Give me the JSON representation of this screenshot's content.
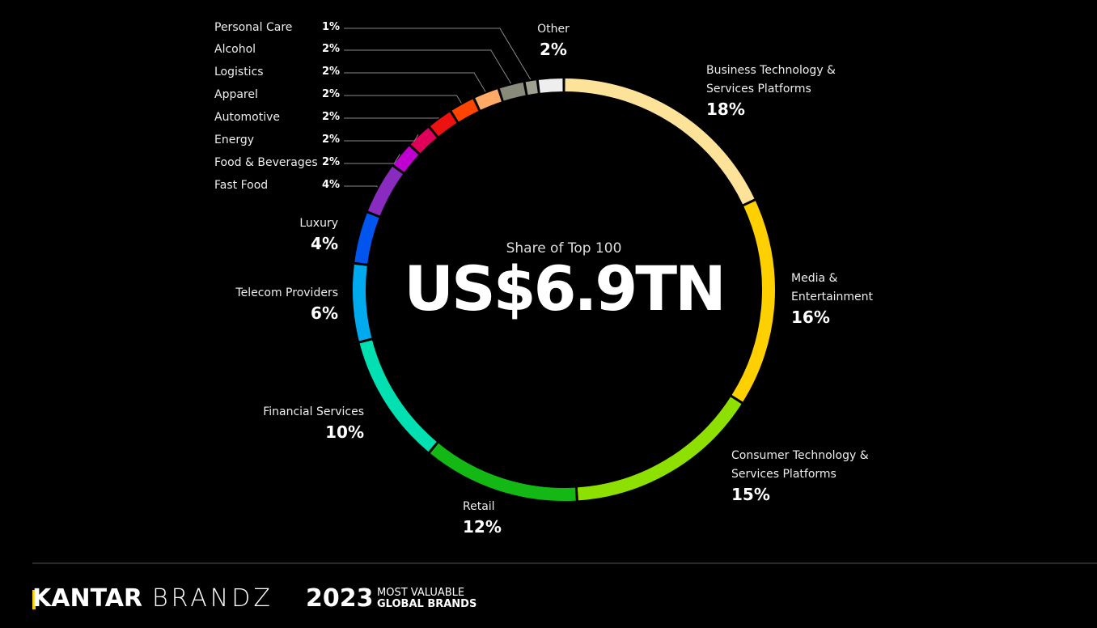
{
  "chart_data": {
    "type": "pie",
    "center_caption": "Share of Top 100",
    "center_value": "US$6.9TN",
    "categories": [
      "Business Technology & Services Platforms",
      "Media & Entertainment",
      "Consumer Technology & Services Platforms",
      "Retail",
      "Financial Services",
      "Telecom Providers",
      "Luxury",
      "Fast Food",
      "Food & Beverages",
      "Energy",
      "Automotive",
      "Apparel",
      "Logistics",
      "Alcohol",
      "Personal Care",
      "Other"
    ],
    "values": [
      18,
      16,
      15,
      12,
      10,
      6,
      4,
      4,
      2,
      2,
      2,
      2,
      2,
      2,
      1,
      2
    ],
    "value_labels": [
      "18%",
      "16%",
      "15%",
      "12%",
      "10%",
      "6%",
      "4%",
      "4%",
      "2%",
      "2%",
      "2%",
      "2%",
      "2%",
      "2%",
      "1%",
      "2%"
    ],
    "colors": [
      "#fde29a",
      "#ffd000",
      "#8ee000",
      "#14b814",
      "#00e0b0",
      "#00aaee",
      "#0055ee",
      "#8a2bc0",
      "#c000d0",
      "#e0005a",
      "#ee1111",
      "#ff4400",
      "#ffaa66",
      "#8a8a7a",
      "#a0a090",
      "#eeeeee"
    ]
  },
  "footer": {
    "brand_bold": "KANTAR",
    "brand_light": "BRANDZ",
    "year": "2023",
    "tagline_1": "MOST VALUABLE",
    "tagline_2": "GLOBAL BRANDS"
  }
}
